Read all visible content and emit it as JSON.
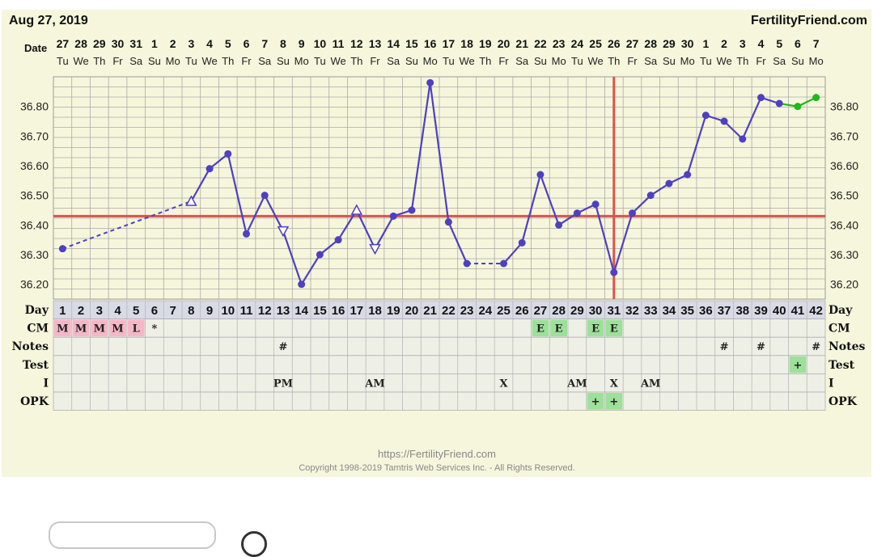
{
  "header": {
    "date": "Aug 27, 2019",
    "brand": "FertilityFriend.com"
  },
  "footer": {
    "url": "https://FertilityFriend.com",
    "copyright": "Copyright 1998-2019 Tamtris Web Services Inc. - All Rights Reserved."
  },
  "row_labels": {
    "date": "Date",
    "day": "Day",
    "cm": "CM",
    "notes": "Notes",
    "test": "Test",
    "i": "I",
    "opk": "OPK"
  },
  "dates": [
    "27",
    "28",
    "29",
    "30",
    "31",
    "1",
    "2",
    "3",
    "4",
    "5",
    "6",
    "7",
    "8",
    "9",
    "10",
    "11",
    "12",
    "13",
    "14",
    "15",
    "16",
    "17",
    "18",
    "19",
    "20",
    "21",
    "22",
    "23",
    "24",
    "25",
    "26",
    "27",
    "28",
    "29",
    "30",
    "1",
    "2",
    "3",
    "4",
    "5",
    "6",
    "7"
  ],
  "weekdays": [
    "Tu",
    "We",
    "Th",
    "Fr",
    "Sa",
    "Su",
    "Mo",
    "Tu",
    "We",
    "Th",
    "Fr",
    "Sa",
    "Su",
    "Mo",
    "Tu",
    "We",
    "Th",
    "Fr",
    "Sa",
    "Su",
    "Mo",
    "Tu",
    "We",
    "Th",
    "Fr",
    "Sa",
    "Su",
    "Mo",
    "Tu",
    "We",
    "Th",
    "Fr",
    "Sa",
    "Su",
    "Mo",
    "Tu",
    "We",
    "Th",
    "Fr",
    "Sa",
    "Su",
    "Mo"
  ],
  "colors": {
    "line": "#4f3fc2",
    "cover": "#d9534f",
    "green": "#1db91d",
    "cm_red": "#f5b7c8",
    "cm_green": "#9de09a",
    "panel": "#f6f6dc",
    "cell": "#eef0e6",
    "dayrow": "#d8dbe6"
  },
  "chart_data": {
    "type": "line",
    "y_ticks": [
      "36.20",
      "36.30",
      "36.40",
      "36.50",
      "36.60",
      "36.70",
      "36.80"
    ],
    "ylim": [
      36.15,
      36.9
    ],
    "x": [
      1,
      2,
      3,
      4,
      5,
      6,
      7,
      8,
      9,
      10,
      11,
      12,
      13,
      14,
      15,
      16,
      17,
      18,
      19,
      20,
      21,
      22,
      23,
      24,
      25,
      26,
      27,
      28,
      29,
      30,
      31,
      32,
      33,
      34,
      35,
      36,
      37,
      38,
      39,
      40,
      41,
      42
    ],
    "temps": [
      36.32,
      null,
      null,
      null,
      null,
      null,
      null,
      36.48,
      36.59,
      36.64,
      36.37,
      36.5,
      36.38,
      36.2,
      36.3,
      36.35,
      36.45,
      36.32,
      36.43,
      36.45,
      36.88,
      36.41,
      36.27,
      null,
      36.27,
      36.34,
      36.57,
      36.4,
      36.44,
      36.47,
      36.24,
      36.44,
      36.5,
      36.54,
      36.57,
      36.77,
      36.75,
      36.69,
      36.83,
      36.81,
      36.8,
      36.83
    ],
    "open_up_days": [
      8,
      17
    ],
    "open_down_days": [
      13,
      18
    ],
    "dashed_segments": [
      [
        1,
        8
      ],
      [
        23,
        25
      ]
    ],
    "projected_days": [
      40,
      41,
      42
    ],
    "coverline": 36.43,
    "ovulation_day": 31
  },
  "rows": {
    "days": [
      "1",
      "2",
      "3",
      "4",
      "5",
      "6",
      "7",
      "8",
      "9",
      "10",
      "11",
      "12",
      "13",
      "14",
      "15",
      "16",
      "17",
      "18",
      "19",
      "20",
      "21",
      "22",
      "23",
      "24",
      "25",
      "26",
      "27",
      "28",
      "29",
      "30",
      "31",
      "32",
      "33",
      "34",
      "35",
      "36",
      "37",
      "38",
      "39",
      "40",
      "41",
      "42"
    ],
    "cm": [
      {
        "day": 1,
        "v": "M",
        "c": "red"
      },
      {
        "day": 2,
        "v": "M",
        "c": "red"
      },
      {
        "day": 3,
        "v": "M",
        "c": "red"
      },
      {
        "day": 4,
        "v": "M",
        "c": "red"
      },
      {
        "day": 5,
        "v": "L",
        "c": "red"
      },
      {
        "day": 6,
        "v": "*",
        "c": ""
      },
      {
        "day": 27,
        "v": "E",
        "c": "green"
      },
      {
        "day": 28,
        "v": "E",
        "c": "green"
      },
      {
        "day": 30,
        "v": "E",
        "c": "green"
      },
      {
        "day": 31,
        "v": "E",
        "c": "green"
      }
    ],
    "notes": [
      {
        "day": 13,
        "v": "#"
      },
      {
        "day": 37,
        "v": "#"
      },
      {
        "day": 39,
        "v": "#"
      },
      {
        "day": 42,
        "v": "#"
      }
    ],
    "test": [
      {
        "day": 41,
        "v": "+",
        "c": "green"
      }
    ],
    "i": [
      {
        "day": 13,
        "v": "PM"
      },
      {
        "day": 18,
        "v": "AM"
      },
      {
        "day": 25,
        "v": "X"
      },
      {
        "day": 29,
        "v": "AM"
      },
      {
        "day": 31,
        "v": "X"
      },
      {
        "day": 33,
        "v": "AM"
      }
    ],
    "opk": [
      {
        "day": 30,
        "v": "+",
        "c": "green"
      },
      {
        "day": 31,
        "v": "+",
        "c": "green"
      }
    ]
  }
}
